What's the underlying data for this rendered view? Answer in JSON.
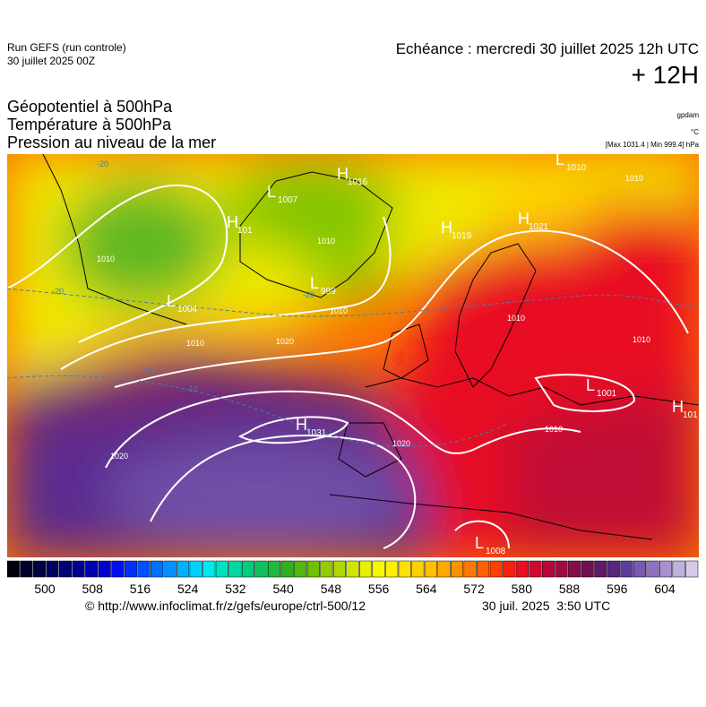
{
  "header": {
    "run": "Run GEFS (run controle)",
    "run_date": "30 juillet 2025 00Z",
    "valid": "Echéance : mercredi 30 juillet 2025 12h UTC",
    "step": "+ 12H"
  },
  "titles": [
    "Géopotentiel à 500hPa",
    "Température à 500hPa",
    "Pression au niveau de la mer"
  ],
  "units": {
    "geopotential": "gpdam",
    "temperature": "°C",
    "pressure": "[Max 1031.4 | Min 999.4] hPa"
  },
  "map": {
    "centers": [
      {
        "letter": "H",
        "value": "1016"
      },
      {
        "letter": "L",
        "value": "1007"
      },
      {
        "letter": "H",
        "value": "101"
      },
      {
        "letter": "L",
        "value": "1010"
      },
      {
        "letter": "H",
        "value": "1019"
      },
      {
        "letter": "H",
        "value": "1021"
      },
      {
        "letter": "L",
        "value": "999"
      },
      {
        "letter": "L",
        "value": "1004"
      },
      {
        "letter": "H",
        "value": "1031"
      },
      {
        "letter": "L",
        "value": "1001"
      },
      {
        "letter": "H",
        "value": "101"
      },
      {
        "letter": "L",
        "value": "1008"
      }
    ],
    "isobar_labels": [
      "1010",
      "1010",
      "1010",
      "1010",
      "1010",
      "1010",
      "1020",
      "1020",
      "1020",
      "1010",
      "1010"
    ],
    "temperature_labels": [
      "-20",
      "-20",
      "-20",
      "-10",
      "-10"
    ]
  },
  "colorbar": {
    "ticks": [
      500,
      508,
      516,
      524,
      532,
      540,
      548,
      556,
      564,
      572,
      580,
      588,
      596,
      604
    ],
    "colors": [
      "#000010",
      "#00002a",
      "#000044",
      "#00005e",
      "#000078",
      "#000092",
      "#0000b0",
      "#0000d0",
      "#0010f0",
      "#0030ff",
      "#0050ff",
      "#0070ff",
      "#0090ff",
      "#00b0ff",
      "#00d0ff",
      "#00e8f0",
      "#00e0c0",
      "#00d8a0",
      "#00cc80",
      "#10c060",
      "#20b840",
      "#30b020",
      "#50b810",
      "#70c000",
      "#90cc00",
      "#b0d800",
      "#d0e400",
      "#e8f000",
      "#f8f800",
      "#fff000",
      "#ffe000",
      "#ffd000",
      "#ffc000",
      "#ffa800",
      "#ff9000",
      "#ff7800",
      "#ff6000",
      "#ff4000",
      "#f82010",
      "#e81020",
      "#d00830",
      "#b80838",
      "#a00a40",
      "#880c48",
      "#701050",
      "#601868",
      "#582880",
      "#603c98",
      "#7858b0",
      "#9070c0",
      "#a890d0",
      "#c0b0e0",
      "#d8c8ec"
    ]
  },
  "footer": {
    "url": "© http://www.infoclimat.fr/z/gefs/europe/ctrl-500/12",
    "generated": "30 juil. 2025  3:50 UTC"
  }
}
